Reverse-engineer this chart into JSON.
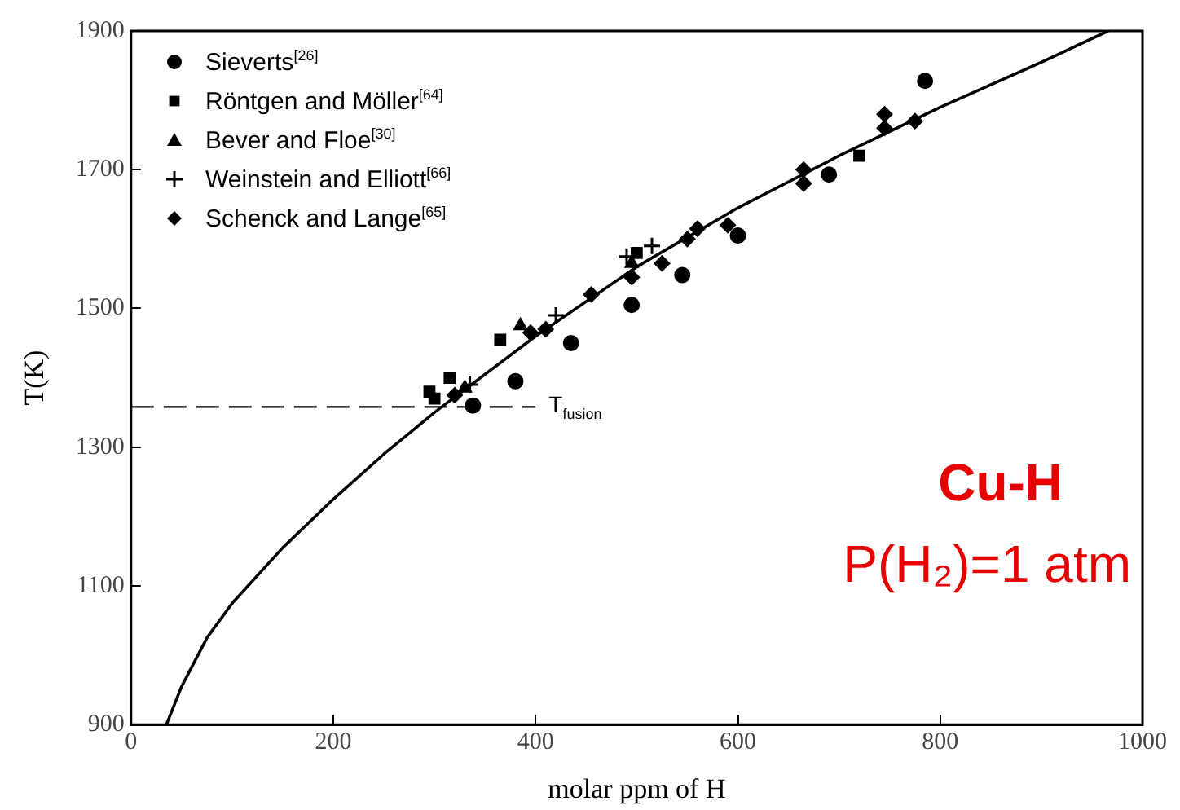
{
  "chart_data": {
    "type": "scatter",
    "xlabel": "molar ppm of H",
    "ylabel": "T(K)",
    "xlim": [
      0,
      1000
    ],
    "xticks": [
      0,
      200,
      400,
      600,
      800,
      1000
    ],
    "ylim": [
      900,
      1900
    ],
    "yticks": [
      900,
      1100,
      1300,
      1500,
      1700,
      1900
    ],
    "grid": false,
    "legend": "top left",
    "series": [
      {
        "name": "Sieverts$^{[26]}$",
        "color": "#000000",
        "marker": "circle",
        "x": [
          338,
          380,
          435,
          495,
          545,
          600,
          690,
          785
        ],
        "values": [
          1360,
          1395,
          1450,
          1505,
          1548,
          1605,
          1693,
          1828
        ]
      },
      {
        "name": "Röntgen and Möller$^{[64]}$",
        "color": "#000000",
        "marker": "square",
        "x": [
          295,
          300,
          315,
          365,
          500,
          720
        ],
        "values": [
          1380,
          1370,
          1400,
          1455,
          1580,
          1720
        ]
      },
      {
        "name": "Bever and Floe$^{[30]}$",
        "color": "#000000",
        "marker": "triangle",
        "x": [
          330,
          385,
          495
        ],
        "values": [
          1385,
          1475,
          1565
        ]
      },
      {
        "name": "Weinstein and Elliott$^{[66]}$",
        "color": "#000000",
        "marker": "cross",
        "x": [
          335,
          420,
          490,
          515
        ],
        "values": [
          1390,
          1490,
          1575,
          1590
        ]
      },
      {
        "name": "Schenck and Lange$^{[65]}$",
        "color": "#000000",
        "marker": "diamond",
        "x": [
          320,
          395,
          410,
          455,
          495,
          525,
          550,
          560,
          590,
          665,
          665,
          745,
          745,
          775
        ],
        "values": [
          1375,
          1465,
          1470,
          1520,
          1545,
          1565,
          1600,
          1615,
          1620,
          1680,
          1700,
          1760,
          1780,
          1770
        ]
      },
      {
        "type": "line",
        "color": "#000000",
        "marker": "none",
        "x": [
          35,
          50,
          75,
          100,
          150,
          200,
          250,
          300,
          400,
          500,
          600,
          700,
          800,
          900,
          966
        ],
        "values": [
          900,
          955,
          1025,
          1075,
          1155,
          1225,
          1290,
          1350,
          1460,
          1560,
          1645,
          1720,
          1790,
          1855,
          1900
        ]
      }
    ],
    "ref_lines": [
      {
        "axis": "y",
        "value": 1358,
        "label": "T$_{fusion}$",
        "line_style": "dashed",
        "color": "#000000"
      }
    ],
    "annotations": [
      "Cu-H",
      "P(H₂)=1 atm"
    ]
  }
}
